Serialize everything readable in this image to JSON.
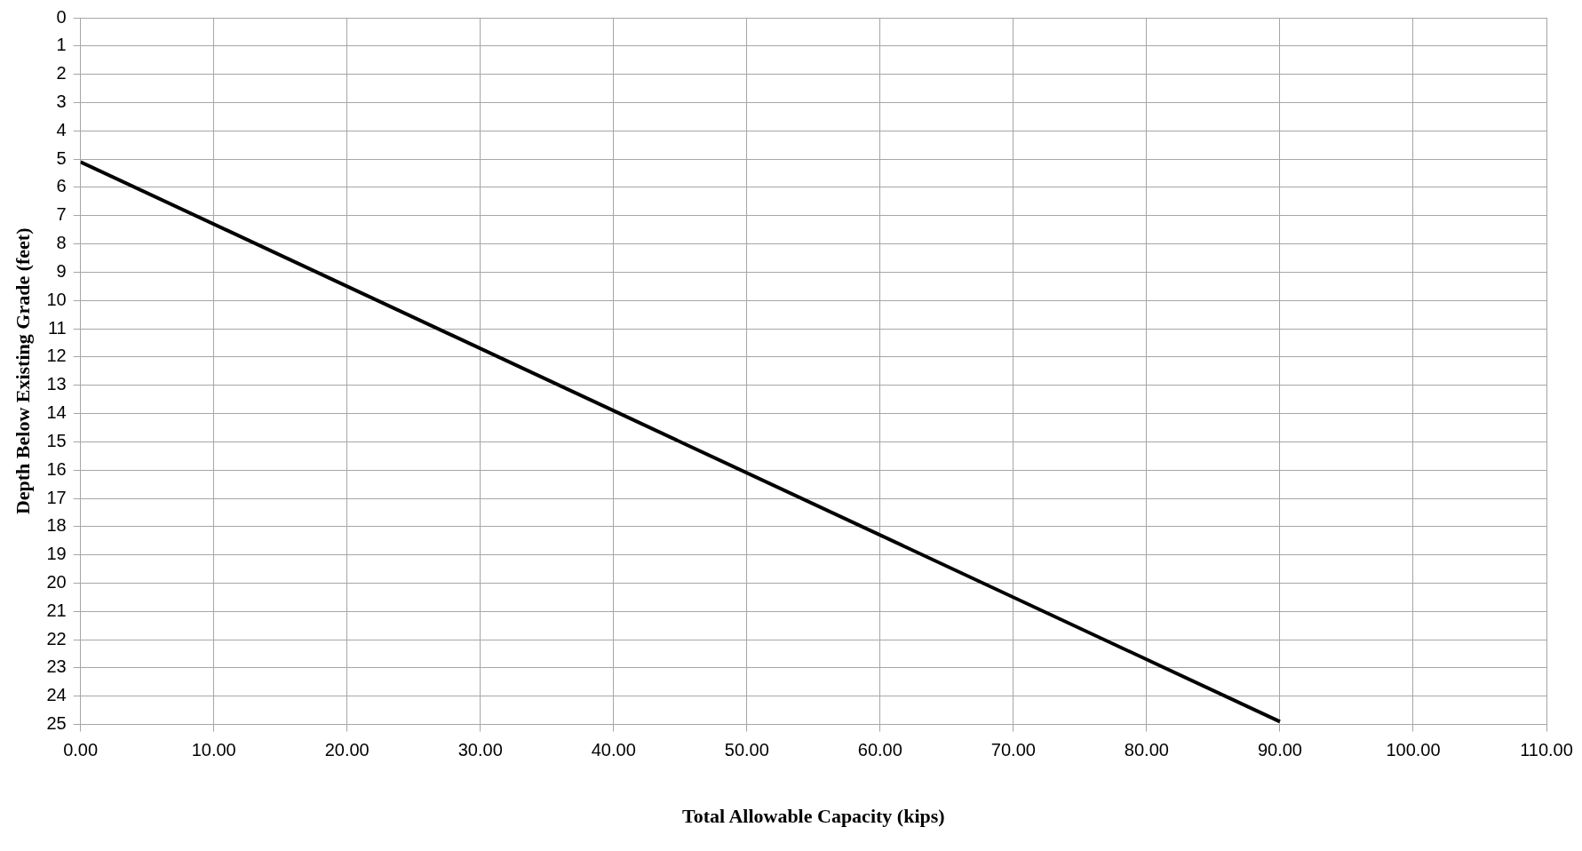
{
  "chart_data": {
    "type": "line",
    "xlabel": "Total Allowable Capacity (kips)",
    "ylabel": "Depth Below Existing Grade (feet)",
    "x": [
      0,
      90
    ],
    "series": [
      {
        "color": "#000000",
        "values": [
          5.1,
          24.9
        ]
      }
    ],
    "xlim": [
      0,
      110
    ],
    "xticks": [
      {
        "value": 0,
        "label": "0.00"
      },
      {
        "value": 10,
        "label": "10.00"
      },
      {
        "value": 20,
        "label": "20.00"
      },
      {
        "value": 30,
        "label": "30.00"
      },
      {
        "value": 40,
        "label": "40.00"
      },
      {
        "value": 50,
        "label": "50.00"
      },
      {
        "value": 60,
        "label": "60.00"
      },
      {
        "value": 70,
        "label": "70.00"
      },
      {
        "value": 80,
        "label": "80.00"
      },
      {
        "value": 90,
        "label": "90.00"
      },
      {
        "value": 100,
        "label": "100.00"
      },
      {
        "value": 110,
        "label": "110.00"
      }
    ],
    "ylim": [
      25,
      0
    ],
    "yticks": [
      0,
      1,
      2,
      3,
      4,
      5,
      6,
      7,
      8,
      9,
      10,
      11,
      12,
      13,
      14,
      15,
      16,
      17,
      18,
      19,
      20,
      21,
      22,
      23,
      24,
      25
    ],
    "grid": true,
    "legend": false,
    "marker": "none",
    "line_style": "solid"
  }
}
